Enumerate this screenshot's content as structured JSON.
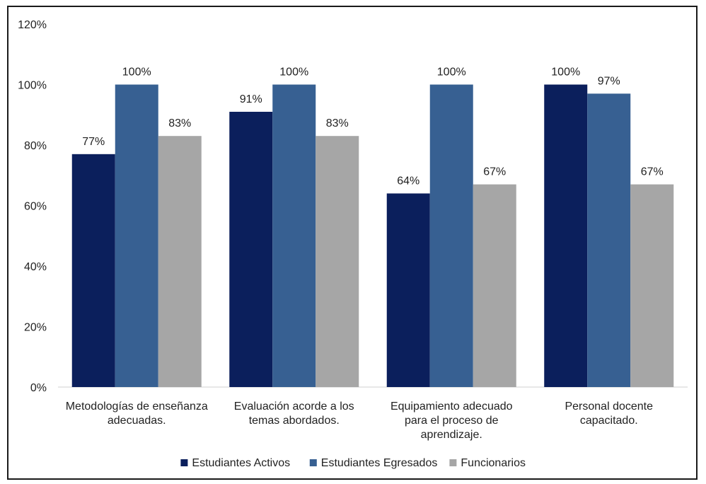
{
  "chart_data": {
    "type": "bar",
    "categories": [
      [
        "Metodologías de enseñanza",
        "adecuadas."
      ],
      [
        "Evaluación acorde a los",
        "temas abordados."
      ],
      [
        "Equipamiento adecuado",
        "para el proceso de",
        "aprendizaje."
      ],
      [
        "Personal docente",
        "capacitado."
      ]
    ],
    "series": [
      {
        "name": "Estudiantes Activos",
        "values": [
          77,
          91,
          64,
          100
        ],
        "color": "#0b1f5c"
      },
      {
        "name": "Estudiantes Egresados",
        "values": [
          100,
          100,
          100,
          97
        ],
        "color": "#376092"
      },
      {
        "name": "Funcionarios",
        "values": [
          83,
          83,
          67,
          67
        ],
        "color": "#a6a6a6"
      }
    ],
    "ylim": [
      0,
      120
    ],
    "yticks": [
      0,
      20,
      40,
      60,
      80,
      100,
      120
    ],
    "value_suffix": "%",
    "grid": false,
    "legend": "bottom"
  }
}
